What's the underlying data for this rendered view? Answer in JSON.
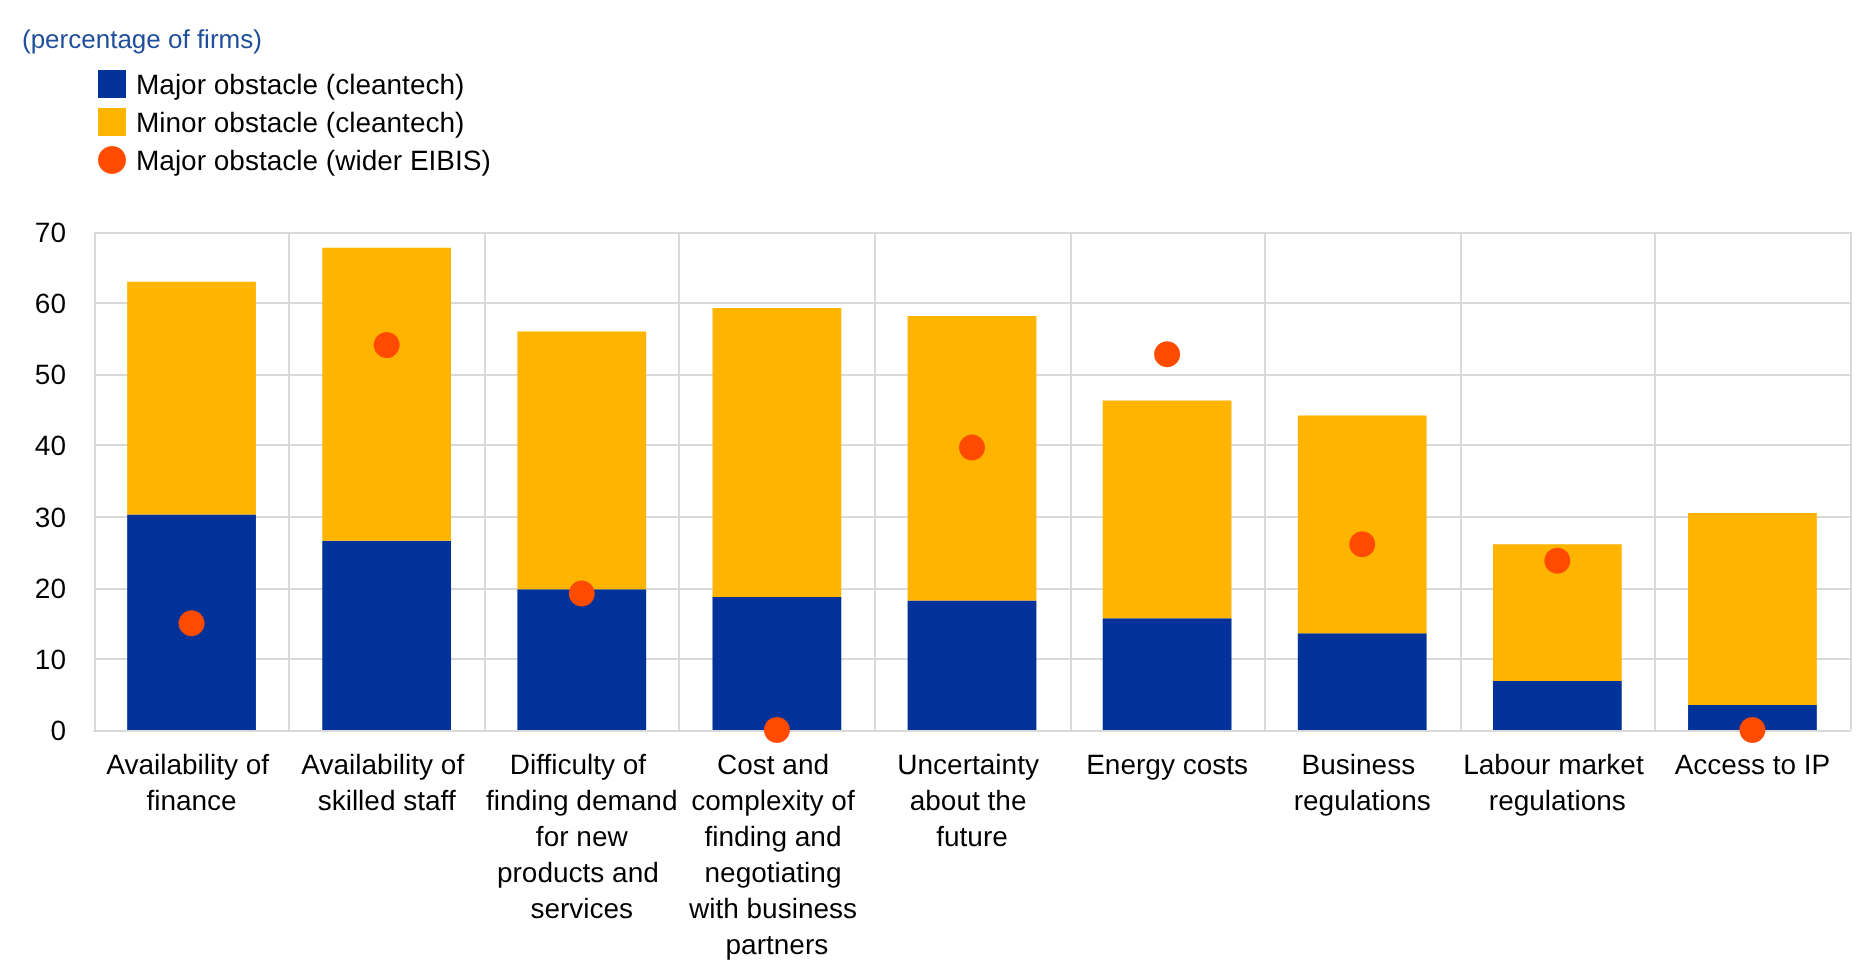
{
  "chart_data": {
    "type": "bar",
    "annotations": [
      "(percentage of firms)"
    ],
    "categories": [
      "Availability of finance",
      "Availability of skilled staff",
      "Difficulty of finding demand for new products and services",
      "Cost and complexity of finding and negotiating with business partners",
      "Uncertainty about the future",
      "Energy costs",
      "Business regulations",
      "Labour market regulations",
      "Access to IP"
    ],
    "stacked": true,
    "series": [
      {
        "name": "Major obstacle (cleantech)",
        "color": "#003299",
        "values": [
          30.3,
          26.6,
          19.8,
          18.7,
          18.2,
          15.7,
          13.6,
          6.9,
          3.5
        ]
      },
      {
        "name": "Minor obstacle (cleantech)",
        "color": "#ffb400",
        "values": [
          32.7,
          41.2,
          36.2,
          40.6,
          40.0,
          30.6,
          30.6,
          19.2,
          27.0
        ]
      },
      {
        "name": "Major obstacle (wider EIBIS)",
        "color": "#ff4b00",
        "type": "scatter",
        "marker": "circle",
        "values": [
          15.0,
          54.1,
          19.2,
          0,
          39.7,
          52.8,
          26.1,
          23.8,
          0
        ]
      }
    ],
    "ylim": [
      0,
      70
    ],
    "yticks": [
      0,
      10,
      20,
      30,
      40,
      50,
      60,
      70
    ],
    "grid": true,
    "legend": "top left"
  }
}
